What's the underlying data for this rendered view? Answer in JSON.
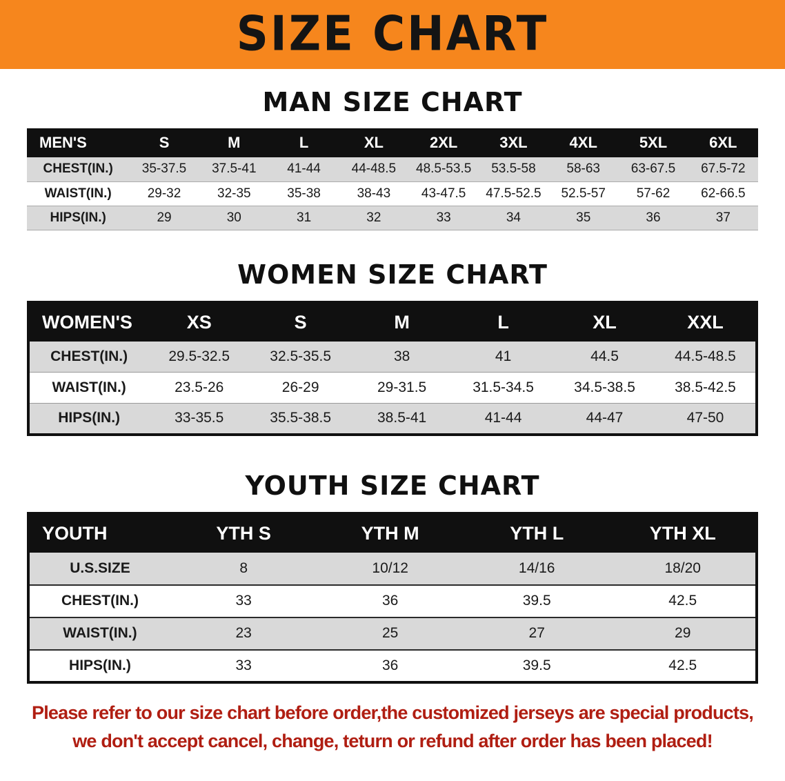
{
  "banner": {
    "title": "SIZE CHART"
  },
  "sections": [
    {
      "id": "men",
      "title": "MAN SIZE CHART",
      "columns": [
        "MEN'S",
        "S",
        "M",
        "L",
        "XL",
        "2XL",
        "3XL",
        "4XL",
        "5XL",
        "6XL"
      ],
      "rows": [
        [
          "CHEST(IN.)",
          "35-37.5",
          "37.5-41",
          "41-44",
          "44-48.5",
          "48.5-53.5",
          "53.5-58",
          "58-63",
          "63-67.5",
          "67.5-72"
        ],
        [
          "WAIST(IN.)",
          "29-32",
          "32-35",
          "35-38",
          "38-43",
          "43-47.5",
          "47.5-52.5",
          "52.5-57",
          "57-62",
          "62-66.5"
        ],
        [
          "HIPS(IN.)",
          "29",
          "30",
          "31",
          "32",
          "33",
          "34",
          "35",
          "36",
          "37"
        ]
      ]
    },
    {
      "id": "women",
      "title": "WOMEN SIZE CHART",
      "columns": [
        "WOMEN'S",
        "XS",
        "S",
        "M",
        "L",
        "XL",
        "XXL"
      ],
      "rows": [
        [
          "CHEST(IN.)",
          "29.5-32.5",
          "32.5-35.5",
          "38",
          "41",
          "44.5",
          "44.5-48.5"
        ],
        [
          "WAIST(IN.)",
          "23.5-26",
          "26-29",
          "29-31.5",
          "31.5-34.5",
          "34.5-38.5",
          "38.5-42.5"
        ],
        [
          "HIPS(IN.)",
          "33-35.5",
          "35.5-38.5",
          "38.5-41",
          "41-44",
          "44-47",
          "47-50"
        ]
      ]
    },
    {
      "id": "youth",
      "title": "YOUTH SIZE CHART",
      "columns": [
        "YOUTH",
        "YTH S",
        "YTH M",
        "YTH L",
        "YTH XL"
      ],
      "rows": [
        [
          "U.S.SIZE",
          "8",
          "10/12",
          "14/16",
          "18/20"
        ],
        [
          "CHEST(IN.)",
          "33",
          "36",
          "39.5",
          "42.5"
        ],
        [
          "WAIST(IN.)",
          "23",
          "25",
          "27",
          "29"
        ],
        [
          "HIPS(IN.)",
          "33",
          "36",
          "39.5",
          "42.5"
        ]
      ]
    }
  ],
  "disclaimer": {
    "line1": "Please refer to our size chart before order,the customized jerseys are special products,",
    "line2": "we don't accept cancel, change, teturn or refund after order has been placed!"
  },
  "colors": {
    "banner_bg": "#F6861D",
    "table_header_bg": "#101010",
    "row_stripe": "#D9D9D9",
    "disclaimer_text": "#B01E12"
  }
}
